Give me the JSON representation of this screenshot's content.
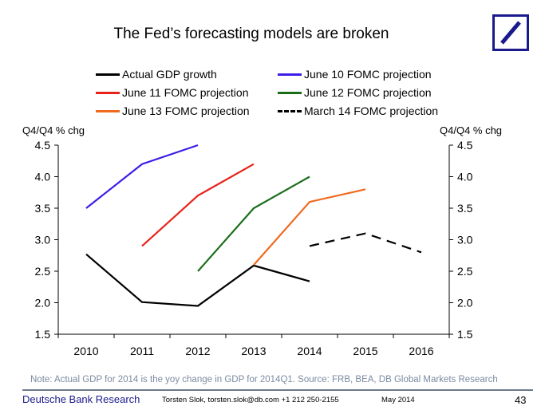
{
  "header": {
    "title": "The Fed’s forecasting models are broken",
    "logo": "Deutsche Bank logo"
  },
  "chart_data": {
    "type": "line",
    "title": "The Fed’s forecasting models are broken",
    "ylabel_left": "Q4/Q4 % chg",
    "ylabel_right": "Q4/Q4 % chg",
    "categories": [
      "2010",
      "2011",
      "2012",
      "2013",
      "2014",
      "2015",
      "2016"
    ],
    "ylim": [
      1.5,
      4.5
    ],
    "yticks": [
      "1.5",
      "2.0",
      "2.5",
      "3.0",
      "3.5",
      "4.0",
      "4.5"
    ],
    "legend_position": "top",
    "grid": false,
    "series": [
      {
        "name": "Actual GDP growth",
        "color": "#000000",
        "dash": false,
        "values": [
          2.77,
          2.01,
          1.95,
          2.59,
          2.34,
          null,
          null
        ]
      },
      {
        "name": "June 10 FOMC projection",
        "color": "#3a1ee6",
        "dash": false,
        "values": [
          3.5,
          4.2,
          4.5,
          null,
          null,
          null,
          null
        ]
      },
      {
        "name": "June 11 FOMC projection",
        "color": "#e8231a",
        "dash": false,
        "values": [
          null,
          2.9,
          3.7,
          4.2,
          null,
          null,
          null
        ]
      },
      {
        "name": "June 12 FOMC projection",
        "color": "#1a6e1a",
        "dash": false,
        "values": [
          null,
          null,
          2.5,
          3.5,
          4.0,
          null,
          null
        ]
      },
      {
        "name": "June 13 FOMC projection",
        "color": "#f06a1e",
        "dash": false,
        "values": [
          null,
          null,
          null,
          2.6,
          3.6,
          3.8,
          null
        ]
      },
      {
        "name": "March 14 FOMC projection",
        "color": "#000000",
        "dash": true,
        "values": [
          null,
          null,
          null,
          null,
          2.9,
          3.1,
          2.8
        ]
      }
    ]
  },
  "footer": {
    "note": "Note: Actual GDP for 2014 is the yoy change in GDP for 2014Q1. Source: FRB, BEA, DB Global Markets Research",
    "brand": "Deutsche Bank Research",
    "contact": "Torsten Slok, torsten.slok@db.com  +1 212 250-2155",
    "date": "May 2014",
    "page": "43"
  }
}
